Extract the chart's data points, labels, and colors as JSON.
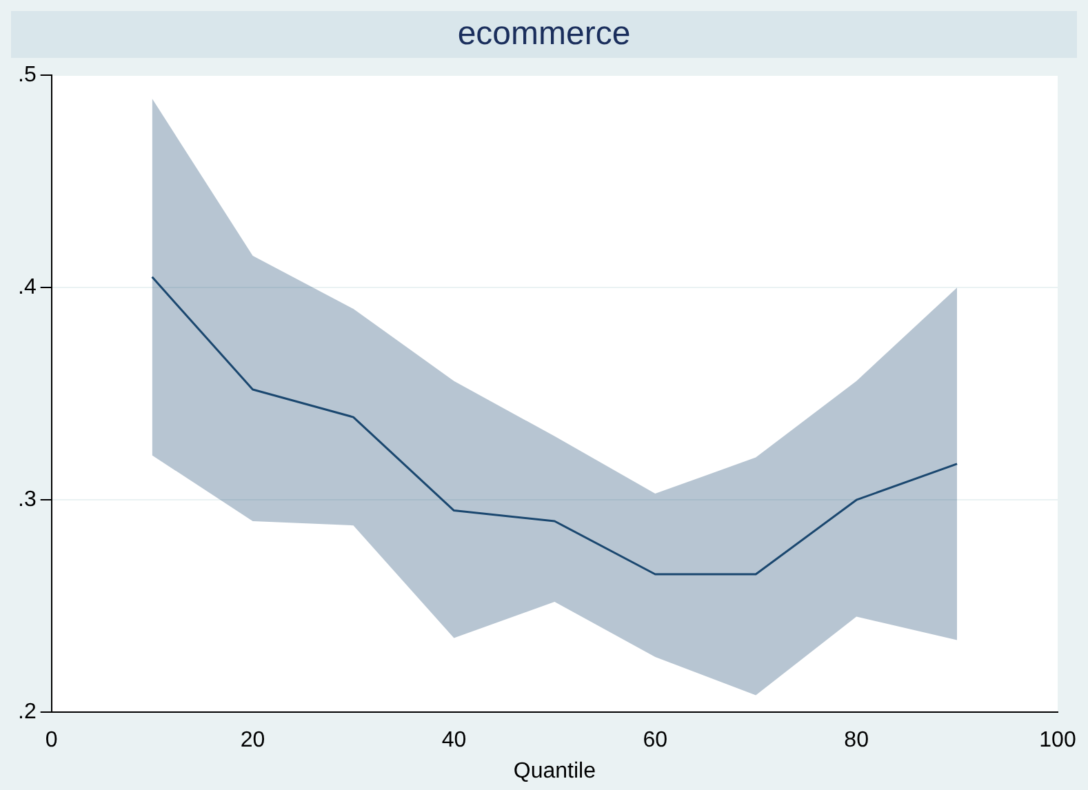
{
  "chart_data": {
    "type": "line",
    "title": "ecommerce",
    "xlabel": "Quantile",
    "x": [
      10,
      20,
      30,
      40,
      50,
      60,
      70,
      80,
      90
    ],
    "series": [
      {
        "color": "#1a476f",
        "values": [
          0.405,
          0.352,
          0.339,
          0.295,
          0.29,
          0.265,
          0.265,
          0.3,
          0.317
        ],
        "lower": [
          0.321,
          0.29,
          0.288,
          0.235,
          0.252,
          0.226,
          0.208,
          0.245,
          0.234
        ],
        "upper": [
          0.489,
          0.415,
          0.39,
          0.356,
          0.33,
          0.303,
          0.32,
          0.356,
          0.4
        ]
      }
    ],
    "xlim": [
      0,
      100
    ],
    "xticks": [
      0,
      20,
      40,
      60,
      80,
      100
    ],
    "ylim": [
      0.2,
      0.5
    ],
    "yticks": [
      {
        "value": 0.2,
        "label": ".2"
      },
      {
        "value": 0.3,
        "label": ".3"
      },
      {
        "value": 0.4,
        "label": ".4"
      },
      {
        "value": 0.5,
        "label": ".5"
      }
    ],
    "grid": "y",
    "legend": false,
    "marker": "none",
    "line_style": "solid"
  }
}
